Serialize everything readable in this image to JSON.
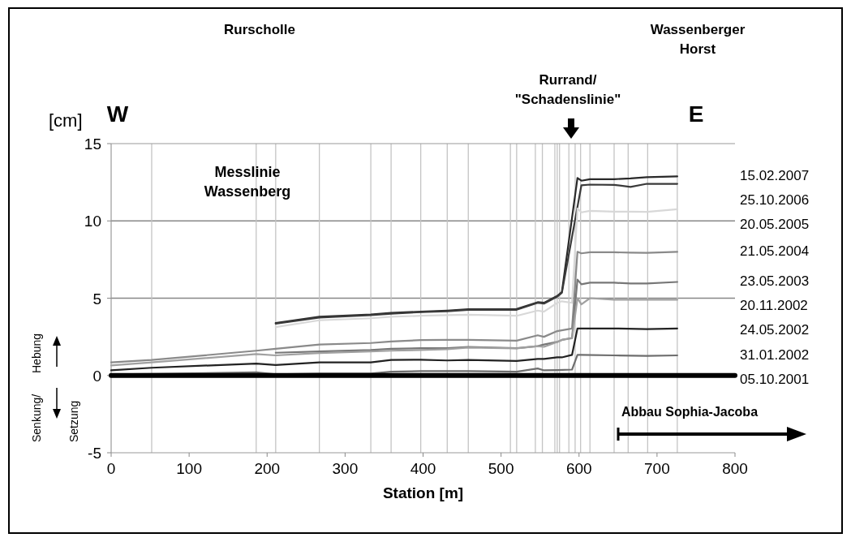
{
  "chart_data": {
    "type": "line",
    "xlabel": "Station [m]",
    "ylabel": "[cm]",
    "xlim": [
      0,
      800
    ],
    "xticks": [
      0,
      100,
      200,
      300,
      400,
      500,
      600,
      700,
      800
    ],
    "ylim": [
      -5,
      15
    ],
    "yticks": [
      -5,
      0,
      5,
      10,
      15
    ],
    "annotations": [
      "Rurscholle",
      "Wassenberger\nHorst",
      "W",
      "E",
      "Rurrand/\n\"Schadenslinie\"",
      "Messlinie\nWassenberg",
      "Hebung",
      "Senkung/",
      "Setzung",
      "Abbau Sophia-Jacoba"
    ],
    "ref_lines": [
      {
        "axis": "y",
        "value": 5,
        "color": "#888888"
      },
      {
        "axis": "y",
        "value": 10,
        "color": "#888888"
      },
      {
        "axis": "x",
        "value": 52,
        "color": "#c4c4c4"
      },
      {
        "axis": "x",
        "value": 186,
        "color": "#c4c4c4"
      },
      {
        "axis": "x",
        "value": 211,
        "color": "#c4c4c4"
      },
      {
        "axis": "x",
        "value": 267,
        "color": "#c4c4c4"
      },
      {
        "axis": "x",
        "value": 333,
        "color": "#c4c4c4"
      },
      {
        "axis": "x",
        "value": 359,
        "color": "#c4c4c4"
      },
      {
        "axis": "x",
        "value": 397,
        "color": "#c4c4c4"
      },
      {
        "axis": "x",
        "value": 431,
        "color": "#c4c4c4"
      },
      {
        "axis": "x",
        "value": 458,
        "color": "#c4c4c4"
      },
      {
        "axis": "x",
        "value": 512,
        "color": "#c4c4c4"
      },
      {
        "axis": "x",
        "value": 520,
        "color": "#c4c4c4"
      },
      {
        "axis": "x",
        "value": 544,
        "color": "#c4c4c4"
      },
      {
        "axis": "x",
        "value": 553,
        "color": "#c4c4c4"
      },
      {
        "axis": "x",
        "value": 569,
        "color": "#c4c4c4"
      },
      {
        "axis": "x",
        "value": 572,
        "color": "#c4c4c4"
      },
      {
        "axis": "x",
        "value": 575,
        "color": "#c4c4c4"
      },
      {
        "axis": "x",
        "value": 587,
        "color": "#c4c4c4"
      },
      {
        "axis": "x",
        "value": 595,
        "color": "#c4c4c4"
      },
      {
        "axis": "x",
        "value": 602,
        "color": "#c4c4c4"
      },
      {
        "axis": "x",
        "value": 614,
        "color": "#c4c4c4"
      },
      {
        "axis": "x",
        "value": 645,
        "color": "#c4c4c4"
      },
      {
        "axis": "x",
        "value": 663,
        "color": "#c4c4c4"
      },
      {
        "axis": "x",
        "value": 688,
        "color": "#c4c4c4"
      },
      {
        "axis": "x",
        "value": 726,
        "color": "#c4c4c4"
      }
    ],
    "series": [
      {
        "name": "15.02.2007",
        "color": "#2a2a2a",
        "x": [
          211,
          267,
          333,
          359,
          397,
          431,
          458,
          520,
          547,
          555,
          572,
          578,
          598,
          603,
          614,
          645,
          666,
          687,
          726
        ],
        "values": [
          3.4,
          3.8,
          3.95,
          4.05,
          4.13,
          4.2,
          4.28,
          4.3,
          4.74,
          4.7,
          5.14,
          5.4,
          12.78,
          12.6,
          12.7,
          12.7,
          12.75,
          12.83,
          12.88
        ]
      },
      {
        "name": "25.10.2006",
        "color": "#3a3a3a",
        "x": [
          211,
          267,
          333,
          359,
          397,
          431,
          458,
          520,
          547,
          555,
          572,
          578,
          603,
          614,
          645,
          666,
          687,
          726
        ],
        "values": [
          3.35,
          3.75,
          3.9,
          4.0,
          4.1,
          4.15,
          4.25,
          4.25,
          4.7,
          4.65,
          5.1,
          5.35,
          12.3,
          12.35,
          12.33,
          12.2,
          12.4,
          12.4
        ]
      },
      {
        "name": "20.05.2005",
        "color": "#d8d8d8",
        "x": [
          211,
          267,
          333,
          359,
          397,
          431,
          458,
          520,
          547,
          555,
          572,
          578,
          591,
          598,
          603,
          614,
          645,
          666,
          687,
          726
        ],
        "values": [
          3.13,
          3.57,
          3.7,
          3.8,
          3.86,
          3.9,
          3.93,
          3.86,
          4.2,
          4.13,
          4.7,
          4.8,
          4.7,
          10.8,
          10.55,
          10.65,
          10.6,
          10.6,
          10.58,
          10.75
        ]
      },
      {
        "name": "21.05.2004",
        "color": "#8a8a8a",
        "x": [
          0,
          52,
          186,
          211,
          267,
          333,
          359,
          397,
          431,
          458,
          520,
          547,
          555,
          572,
          591,
          598,
          603,
          614,
          645,
          666,
          687,
          726
        ],
        "values": [
          0.85,
          1.0,
          1.6,
          1.73,
          2.0,
          2.1,
          2.2,
          2.29,
          2.3,
          2.3,
          2.25,
          2.6,
          2.5,
          2.87,
          3.04,
          8.0,
          7.9,
          7.97,
          7.97,
          7.95,
          7.93,
          8.0
        ]
      },
      {
        "name": "23.05.2003",
        "color": "#777777",
        "x": [
          211,
          267,
          333,
          359,
          397,
          431,
          458,
          520,
          547,
          555,
          572,
          578,
          591,
          598,
          603,
          614,
          645,
          666,
          687,
          726
        ],
        "values": [
          1.47,
          1.56,
          1.65,
          1.73,
          1.76,
          1.76,
          1.85,
          1.77,
          1.9,
          2.0,
          2.17,
          2.3,
          2.43,
          6.2,
          5.9,
          6.0,
          6.0,
          5.95,
          5.95,
          6.05
        ]
      },
      {
        "name": "20.11.2002",
        "color": "#a0a0a0",
        "x": [
          0,
          52,
          186,
          211,
          267,
          333,
          359,
          397,
          431,
          458,
          520,
          547,
          555,
          572,
          578,
          591,
          598,
          603,
          614,
          645,
          666,
          687,
          726
        ],
        "values": [
          0.65,
          0.85,
          1.38,
          1.3,
          1.45,
          1.55,
          1.6,
          1.65,
          1.7,
          1.8,
          1.75,
          1.9,
          1.85,
          2.17,
          2.3,
          2.4,
          5.0,
          4.6,
          5.0,
          4.9,
          4.9,
          4.9,
          4.9
        ]
      },
      {
        "name": "24.05.2002",
        "color": "#222222",
        "x": [
          0,
          52,
          186,
          211,
          267,
          333,
          359,
          397,
          431,
          458,
          520,
          547,
          555,
          572,
          578,
          591,
          598,
          603,
          645,
          687,
          726
        ],
        "values": [
          0.33,
          0.5,
          0.77,
          0.68,
          0.85,
          0.85,
          1.0,
          1.02,
          0.97,
          1.0,
          0.94,
          1.07,
          1.07,
          1.17,
          1.17,
          1.33,
          3.04,
          3.04,
          3.04,
          3.0,
          3.04
        ]
      },
      {
        "name": "31.01.2002",
        "color": "#6e6e6e",
        "x": [
          0,
          52,
          186,
          211,
          267,
          333,
          359,
          397,
          431,
          458,
          520,
          547,
          555,
          572,
          591,
          598,
          603,
          645,
          687,
          726
        ],
        "values": [
          0.07,
          0.1,
          0.2,
          0.07,
          0.12,
          0.12,
          0.24,
          0.28,
          0.28,
          0.28,
          0.24,
          0.45,
          0.33,
          0.35,
          0.38,
          1.33,
          1.33,
          1.3,
          1.27,
          1.3
        ]
      },
      {
        "name": "05.10.2001",
        "color": "#000000",
        "x": [
          0,
          800
        ],
        "values": [
          0,
          0
        ]
      }
    ]
  }
}
